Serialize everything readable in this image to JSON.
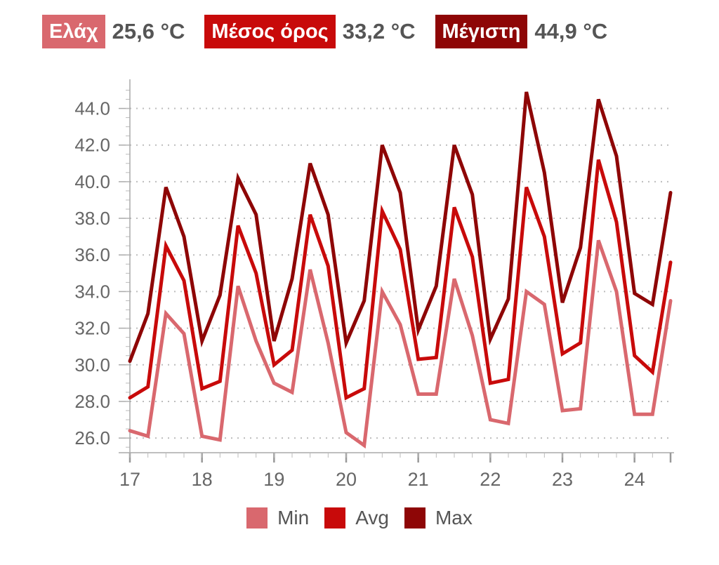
{
  "summary": {
    "min": {
      "label": "Ελάχ",
      "value": "25,6 °C",
      "color": "#d9686e"
    },
    "avg": {
      "label": "Μέσος όρος",
      "value": "33,2 °C",
      "color": "#c80a0a"
    },
    "max": {
      "label": "Μέγιστη",
      "value": "44,9 °C",
      "color": "#8e0606"
    }
  },
  "chart_data": {
    "type": "line",
    "x": [
      17,
      17.25,
      17.5,
      17.75,
      18,
      18.25,
      18.5,
      18.75,
      19,
      19.25,
      19.5,
      19.75,
      20,
      20.25,
      20.5,
      20.75,
      21,
      21.25,
      21.5,
      21.75,
      22,
      22.25,
      22.5,
      22.75,
      23,
      23.25,
      23.5,
      23.75,
      24,
      24.25,
      24.5
    ],
    "x_ticks": [
      17,
      18,
      19,
      20,
      21,
      22,
      23,
      24
    ],
    "y_ticks": [
      "26.0",
      "28.0",
      "30.0",
      "32.0",
      "34.0",
      "36.0",
      "38.0",
      "40.0",
      "42.0",
      "44.0"
    ],
    "xlim": [
      17,
      24.5
    ],
    "ylim": [
      25.2,
      45.4
    ],
    "grid": "horizontal-dotted",
    "legend_position": "bottom-center",
    "series": [
      {
        "name": "Min",
        "color": "#d9686e",
        "values": [
          26.4,
          26.1,
          32.8,
          31.7,
          26.1,
          25.9,
          34.3,
          31.3,
          29.0,
          28.5,
          35.2,
          31.2,
          26.3,
          25.6,
          34.0,
          32.2,
          28.4,
          28.4,
          34.7,
          31.6,
          27.0,
          26.8,
          34.0,
          33.3,
          27.5,
          27.6,
          36.8,
          34.0,
          27.3,
          27.3,
          33.5
        ]
      },
      {
        "name": "Avg",
        "color": "#c80a0a",
        "values": [
          28.2,
          28.8,
          36.5,
          34.6,
          28.7,
          29.1,
          37.6,
          35.0,
          30.0,
          30.8,
          38.2,
          35.4,
          28.2,
          28.7,
          38.4,
          36.3,
          30.3,
          30.4,
          38.6,
          35.9,
          29.0,
          29.2,
          39.7,
          37.0,
          30.6,
          31.2,
          41.2,
          37.8,
          30.5,
          29.6,
          35.6
        ]
      },
      {
        "name": "Max",
        "color": "#8e0606",
        "values": [
          30.2,
          32.8,
          39.7,
          37.0,
          31.3,
          33.8,
          40.2,
          38.2,
          31.3,
          34.7,
          41.0,
          38.2,
          31.2,
          33.5,
          42.0,
          39.4,
          31.9,
          34.3,
          42.0,
          39.3,
          31.4,
          33.6,
          44.9,
          40.5,
          33.4,
          36.4,
          44.5,
          41.4,
          33.9,
          33.3,
          39.4
        ]
      }
    ]
  }
}
